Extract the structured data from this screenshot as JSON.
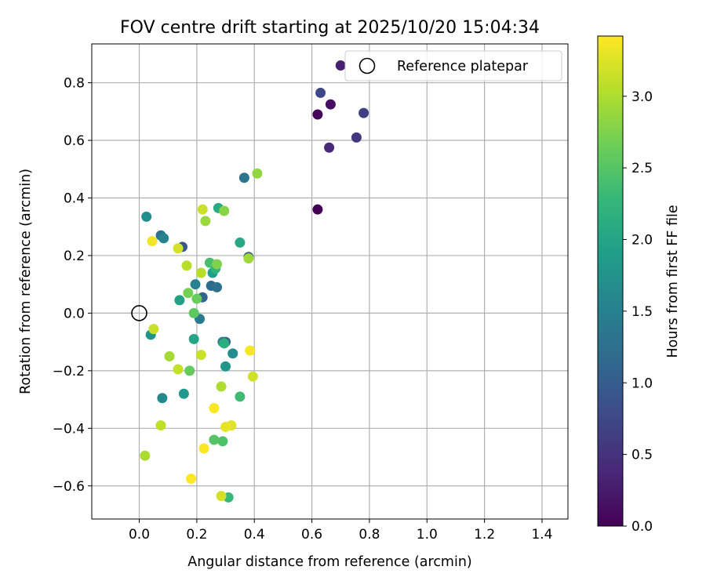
{
  "chart_data": {
    "type": "scatter",
    "title": "FOV centre drift starting at 2025/10/20 15:04:34",
    "xlabel": "Angular distance from reference (arcmin)",
    "ylabel": "Rotation from reference (arcmin)",
    "xlim": [
      -0.165,
      1.49
    ],
    "ylim": [
      -0.715,
      0.935
    ],
    "xticks": [
      0.0,
      0.2,
      0.4,
      0.6,
      0.8,
      1.0,
      1.2,
      1.4
    ],
    "xtick_labels": [
      "0.0",
      "0.2",
      "0.4",
      "0.6",
      "0.8",
      "1.0",
      "1.2",
      "1.4"
    ],
    "yticks": [
      -0.6,
      -0.4,
      -0.2,
      0.0,
      0.2,
      0.4,
      0.6,
      0.8
    ],
    "ytick_labels": [
      "−0.6",
      "−0.4",
      "−0.2",
      "0.0",
      "0.2",
      "0.4",
      "0.6",
      "0.8"
    ],
    "grid": true,
    "legend": {
      "position": "top-right",
      "entries": [
        "Reference platepar"
      ]
    },
    "reference_point": {
      "x": 0.0,
      "y": 0.0,
      "label": "Reference platepar"
    },
    "colorbar": {
      "label": "Hours from first FF file",
      "range": [
        0.0,
        3.42
      ],
      "ticks": [
        0.0,
        0.5,
        1.0,
        1.5,
        2.0,
        2.5,
        3.0
      ],
      "tick_labels": [
        "0.0",
        "0.5",
        "1.0",
        "1.5",
        "2.0",
        "2.5",
        "3.0"
      ],
      "colormap": "viridis",
      "colormap_stops": [
        "#440154",
        "#482878",
        "#3e4989",
        "#31688e",
        "#26828e",
        "#1f9e89",
        "#35b779",
        "#6ece58",
        "#b5de2b",
        "#fde725"
      ]
    },
    "points": [
      {
        "x": 0.62,
        "y": 0.36,
        "t": 0.0
      },
      {
        "x": 0.62,
        "y": 0.69,
        "t": 0.05
      },
      {
        "x": 0.665,
        "y": 0.725,
        "t": 0.15
      },
      {
        "x": 0.7,
        "y": 0.86,
        "t": 0.3
      },
      {
        "x": 0.66,
        "y": 0.575,
        "t": 0.4
      },
      {
        "x": 0.755,
        "y": 0.61,
        "t": 0.55
      },
      {
        "x": 0.78,
        "y": 0.695,
        "t": 0.65
      },
      {
        "x": 0.63,
        "y": 0.765,
        "t": 0.75
      },
      {
        "x": 0.15,
        "y": 0.23,
        "t": 0.95
      },
      {
        "x": 0.38,
        "y": 0.195,
        "t": 1.0
      },
      {
        "x": 0.3,
        "y": -0.1,
        "t": 1.05
      },
      {
        "x": 0.22,
        "y": 0.055,
        "t": 1.1
      },
      {
        "x": 0.25,
        "y": 0.095,
        "t": 1.2
      },
      {
        "x": 0.27,
        "y": 0.09,
        "t": 1.25
      },
      {
        "x": 0.075,
        "y": 0.27,
        "t": 1.3
      },
      {
        "x": 0.365,
        "y": 0.47,
        "t": 1.35
      },
      {
        "x": 0.21,
        "y": -0.02,
        "t": 1.4
      },
      {
        "x": 0.29,
        "y": -0.1,
        "t": 1.45
      },
      {
        "x": 0.195,
        "y": 0.1,
        "t": 1.5
      },
      {
        "x": 0.085,
        "y": 0.26,
        "t": 1.55
      },
      {
        "x": 0.08,
        "y": -0.295,
        "t": 1.6
      },
      {
        "x": 0.325,
        "y": -0.14,
        "t": 1.65
      },
      {
        "x": 0.025,
        "y": 0.335,
        "t": 1.7
      },
      {
        "x": 0.04,
        "y": -0.075,
        "t": 1.75
      },
      {
        "x": 0.3,
        "y": -0.185,
        "t": 1.8
      },
      {
        "x": 0.155,
        "y": -0.28,
        "t": 1.85
      },
      {
        "x": 0.255,
        "y": 0.14,
        "t": 1.9
      },
      {
        "x": 0.14,
        "y": 0.045,
        "t": 1.95
      },
      {
        "x": 0.19,
        "y": -0.09,
        "t": 2.0
      },
      {
        "x": 0.35,
        "y": 0.245,
        "t": 2.05
      },
      {
        "x": 0.275,
        "y": 0.365,
        "t": 2.1
      },
      {
        "x": 0.295,
        "y": -0.105,
        "t": 2.15
      },
      {
        "x": 0.265,
        "y": 0.155,
        "t": 2.2
      },
      {
        "x": 0.31,
        "y": -0.64,
        "t": 2.3
      },
      {
        "x": 0.35,
        "y": -0.29,
        "t": 2.35
      },
      {
        "x": 0.245,
        "y": 0.175,
        "t": 2.4
      },
      {
        "x": 0.29,
        "y": -0.445,
        "t": 2.45
      },
      {
        "x": 0.26,
        "y": -0.44,
        "t": 2.5
      },
      {
        "x": 0.19,
        "y": 0.0,
        "t": 2.55
      },
      {
        "x": 0.175,
        "y": -0.2,
        "t": 2.6
      },
      {
        "x": 0.2,
        "y": 0.05,
        "t": 2.62
      },
      {
        "x": 0.17,
        "y": 0.07,
        "t": 2.7
      },
      {
        "x": 0.27,
        "y": 0.17,
        "t": 2.75
      },
      {
        "x": 0.295,
        "y": 0.355,
        "t": 2.8
      },
      {
        "x": 0.41,
        "y": 0.485,
        "t": 2.85
      },
      {
        "x": 0.23,
        "y": 0.32,
        "t": 2.9
      },
      {
        "x": 0.38,
        "y": 0.19,
        "t": 2.92
      },
      {
        "x": 0.105,
        "y": -0.15,
        "t": 2.95
      },
      {
        "x": 0.285,
        "y": -0.255,
        "t": 3.0
      },
      {
        "x": 0.02,
        "y": -0.495,
        "t": 2.98
      },
      {
        "x": 0.165,
        "y": 0.165,
        "t": 3.05
      },
      {
        "x": 0.215,
        "y": 0.14,
        "t": 3.05
      },
      {
        "x": 0.075,
        "y": -0.39,
        "t": 3.1
      },
      {
        "x": 0.135,
        "y": -0.195,
        "t": 3.12
      },
      {
        "x": 0.215,
        "y": -0.145,
        "t": 3.15
      },
      {
        "x": 0.05,
        "y": -0.055,
        "t": 3.15
      },
      {
        "x": 0.395,
        "y": -0.22,
        "t": 3.18
      },
      {
        "x": 0.135,
        "y": 0.225,
        "t": 3.2
      },
      {
        "x": 0.22,
        "y": 0.36,
        "t": 3.15
      },
      {
        "x": 0.285,
        "y": -0.635,
        "t": 3.2
      },
      {
        "x": 0.32,
        "y": -0.39,
        "t": 3.25
      },
      {
        "x": 0.3,
        "y": -0.395,
        "t": 3.3
      },
      {
        "x": 0.045,
        "y": 0.25,
        "t": 3.35
      },
      {
        "x": 0.385,
        "y": -0.13,
        "t": 3.38
      },
      {
        "x": 0.26,
        "y": -0.33,
        "t": 3.4
      },
      {
        "x": 0.225,
        "y": -0.47,
        "t": 3.4
      },
      {
        "x": 0.18,
        "y": -0.575,
        "t": 3.42
      }
    ]
  }
}
